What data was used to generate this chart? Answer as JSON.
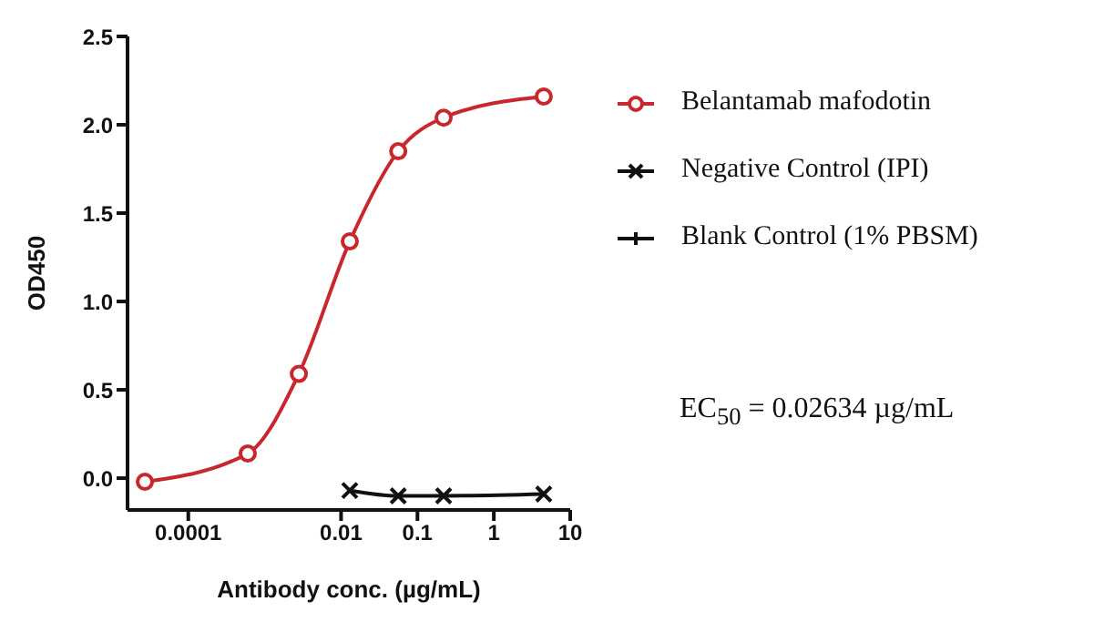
{
  "chart_data": {
    "type": "line",
    "xlabel": "Antibody conc. (µg/mL)",
    "ylabel": "OD450",
    "log": "x",
    "xlim": [
      1.6e-05,
      10
    ],
    "xticks": [
      0.0001,
      0.01,
      0.1,
      1,
      10
    ],
    "ylim": [
      -0.18,
      2.5
    ],
    "yticks": [
      {
        "value": 0,
        "label": "0.0"
      },
      0.5,
      {
        "value": 1,
        "label": "1.0"
      },
      1.5,
      {
        "value": 2,
        "label": "2.0"
      },
      2.5
    ],
    "grid": false,
    "legend": "right",
    "series": [
      {
        "name": "Belantamab mafodotin",
        "color": "#c8282d",
        "marker": "circle",
        "x": [
          2.7e-05,
          0.0006,
          0.0028,
          0.013,
          0.056,
          0.22,
          4.5
        ],
        "values": [
          -0.02,
          0.14,
          0.59,
          1.34,
          1.85,
          2.04,
          2.16
        ]
      },
      {
        "name": "Negative Control (IPI)",
        "color": "#111111",
        "marker": "cross",
        "x": [
          0.013,
          0.056,
          0.22,
          4.5
        ],
        "values": [
          -0.07,
          -0.1,
          -0.1,
          -0.09
        ]
      },
      {
        "name": "Blank Control (1% PBSM)",
        "color": "#111111",
        "marker": "plus"
      }
    ],
    "annotations": [
      "EC$_{50}$ = 0.02634 µg/mL"
    ]
  }
}
